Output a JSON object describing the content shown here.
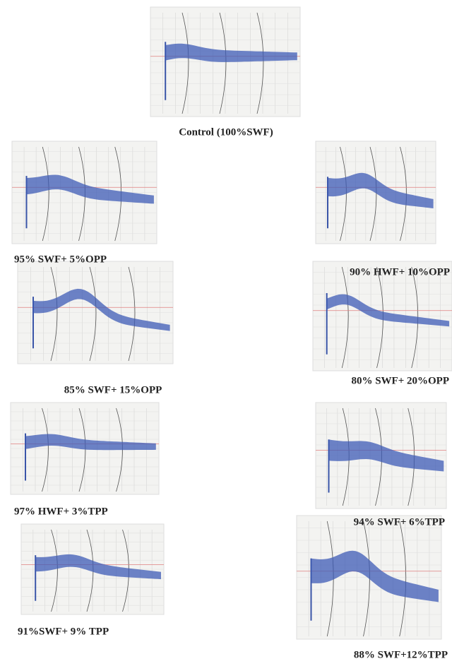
{
  "figure": {
    "panels": [
      {
        "caption": "Control (100%SWF)"
      },
      {
        "caption": "95% SWF+ 5%OPP"
      },
      {
        "caption": "90% HWF+ 10%OPP"
      },
      {
        "caption": "85% SWF+ 15%OPP"
      },
      {
        "caption": "80% SWF+ 20%OPP"
      },
      {
        "caption": "97% HWF+ 3%TPP"
      },
      {
        "caption": "94% SWF+ 6%TPP"
      },
      {
        "caption": "91%SWF+ 9% TPP"
      },
      {
        "caption": "88% SWF+12%TPP"
      }
    ]
  }
}
